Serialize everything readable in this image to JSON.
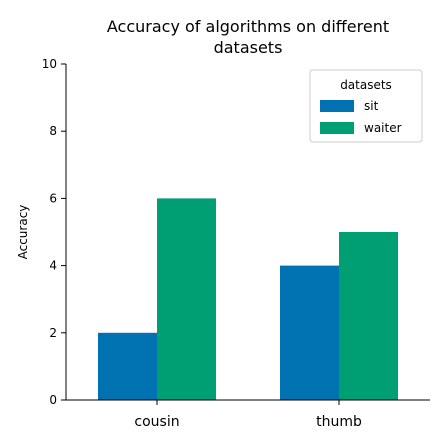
{
  "chart_data": {
    "type": "bar",
    "title_lines": [
      "Accuracy of algorithms on different",
      "datasets"
    ],
    "xlabel": "",
    "ylabel": "Accuracy",
    "categories": [
      "cousin",
      "thumb"
    ],
    "series": [
      {
        "name": "sit",
        "values": [
          2,
          4
        ],
        "color": "#0072b2"
      },
      {
        "name": "waiter",
        "values": [
          6,
          5
        ],
        "color": "#009e73"
      }
    ],
    "ylim": [
      0,
      10
    ],
    "yticks": [
      0,
      2,
      4,
      6,
      8,
      10
    ],
    "grid": false,
    "legend": {
      "title": "datasets",
      "placement": "top-right"
    }
  }
}
